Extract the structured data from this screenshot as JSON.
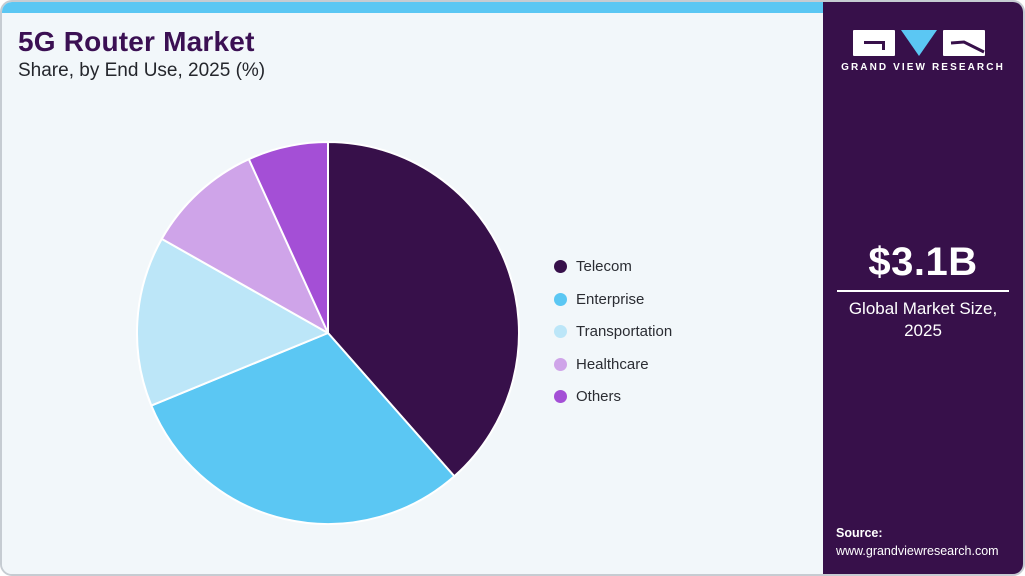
{
  "card": {
    "title": "5G Router Market",
    "subtitle": "Share, by End Use, 2025 (%)"
  },
  "chart_data": {
    "type": "pie",
    "title": "5G Router Market Share, by End Use, 2025 (%)",
    "categories": [
      "Telecom",
      "Enterprise",
      "Transportation",
      "Healthcare",
      "Others"
    ],
    "values": [
      38.5,
      30.3,
      14.4,
      10.0,
      6.8
    ],
    "colors": [
      "#37104a",
      "#5bc7f3",
      "#bce6f8",
      "#cfa4e9",
      "#a44fd6"
    ],
    "start_angle_deg": 0,
    "direction": "clockwise",
    "legend_position": "right",
    "data_labels": false
  },
  "sidebar": {
    "logo_text": "GRAND VIEW RESEARCH",
    "market_size_value": "$3.1B",
    "market_size_label_line1": "Global Market Size,",
    "market_size_label_line2": "2025",
    "source_label": "Source:",
    "source_url": "www.grandviewresearch.com"
  },
  "colors": {
    "accent_bar": "#5bc7f3",
    "panel_bg": "#f2f7fa",
    "sidebar_bg": "#37104a",
    "title_text": "#3b1053",
    "logo_triangle": "#5bc7f3"
  }
}
